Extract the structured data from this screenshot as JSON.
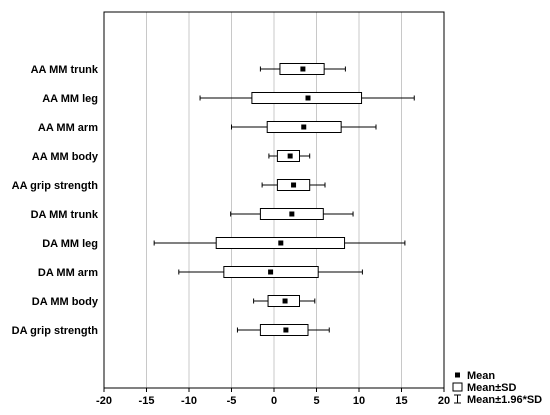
{
  "chart_data": {
    "type": "box",
    "orientation": "horizontal",
    "categories": [
      "AA MM trunk",
      "AA MM leg",
      "AA MM arm",
      "AA MM body",
      "AA grip strength",
      "DA MM trunk",
      "DA MM leg",
      "DA MM arm",
      "DA MM body",
      "DA grip strength"
    ],
    "series": [
      {
        "name": "",
        "items": [
          {
            "mean": 3.4,
            "sd_low": 0.7,
            "sd_high": 5.9,
            "ci_low": -1.6,
            "ci_high": 8.4
          },
          {
            "mean": 4.0,
            "sd_low": -2.6,
            "sd_high": 10.3,
            "ci_low": -8.7,
            "ci_high": 16.5
          },
          {
            "mean": 3.5,
            "sd_low": -0.8,
            "sd_high": 7.9,
            "ci_low": -5.0,
            "ci_high": 12.0
          },
          {
            "mean": 1.9,
            "sd_low": 0.4,
            "sd_high": 3.0,
            "ci_low": -0.6,
            "ci_high": 4.2
          },
          {
            "mean": 2.3,
            "sd_low": 0.4,
            "sd_high": 4.2,
            "ci_low": -1.4,
            "ci_high": 6.0
          },
          {
            "mean": 2.1,
            "sd_low": -1.6,
            "sd_high": 5.8,
            "ci_low": -5.1,
            "ci_high": 9.3
          },
          {
            "mean": 0.8,
            "sd_low": -6.8,
            "sd_high": 8.3,
            "ci_low": -14.1,
            "ci_high": 15.4
          },
          {
            "mean": -0.4,
            "sd_low": -5.9,
            "sd_high": 5.2,
            "ci_low": -11.2,
            "ci_high": 10.4
          },
          {
            "mean": 1.3,
            "sd_low": -0.7,
            "sd_high": 3.0,
            "ci_low": -2.4,
            "ci_high": 4.8
          },
          {
            "mean": 1.4,
            "sd_low": -1.6,
            "sd_high": 4.0,
            "ci_low": -4.3,
            "ci_high": 6.5
          }
        ]
      }
    ],
    "x_ticks": [
      -20,
      -15,
      -10,
      -5,
      0,
      5,
      10,
      15,
      20
    ],
    "xlim": [
      -20,
      20
    ],
    "title": "",
    "xlabel": "",
    "ylabel": "",
    "grid": true,
    "legend": {
      "placement": "bottom-right",
      "entries": [
        {
          "symbol": "mean-marker",
          "label": "Mean"
        },
        {
          "symbol": "sd-box",
          "label": "Mean±SD"
        },
        {
          "symbol": "ci-whisker",
          "label": "Mean±1.96*SD"
        }
      ]
    },
    "colors": {
      "box_fill": "#ffffff",
      "stroke": "#000000",
      "grid": "#c8c8c8",
      "marker": "#000000"
    }
  }
}
